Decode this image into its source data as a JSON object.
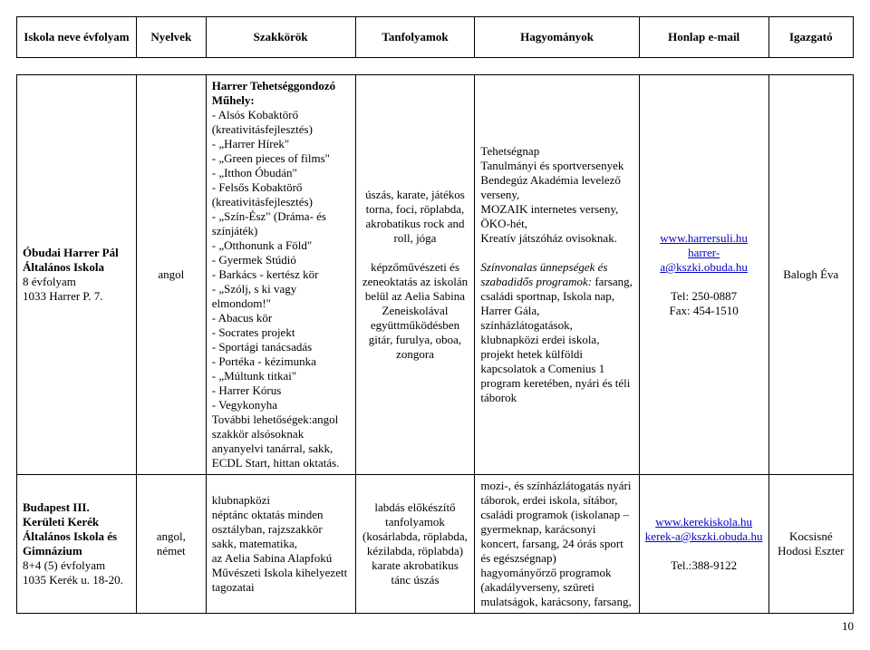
{
  "headers": {
    "school": "Iskola neve évfolyam",
    "languages": "Nyelvek",
    "clubs": "Szakkörök",
    "courses": "Tanfolyamok",
    "traditions": "Hagyományok",
    "contact": "Honlap e-mail",
    "head": "Igazgató"
  },
  "rows": [
    {
      "school_name": "Óbudai Harrer Pál Általános Iskola",
      "school_grades": "8 évfolyam",
      "school_addr": "1033 Harrer P. 7.",
      "languages": "angol",
      "clubs_title": "Harrer Tehetséggondozó Műhely:",
      "clubs_items": [
        "- Alsós Kobaktörő (kreativitásfejlesztés)",
        "- „Harrer Hírek\"",
        "- „Green pieces of films\"",
        "- „Itthon Óbudán\"",
        "- Felsős Kobaktörő (kreativitásfejlesztés)",
        "- „Szín-Ész\" (Dráma- és színjáték)",
        "- „Otthonunk a Föld\"",
        "- Gyermek Stúdió",
        "- Barkács - kertész kör",
        "- „Szólj, s ki vagy elmondom!\"",
        "- Abacus kör",
        "- Socrates projekt",
        "- Sportági tanácsadás",
        "- Portéka - kézimunka",
        "- „Múltunk titkai\"",
        "- Harrer Kórus",
        "- Vegykonyha"
      ],
      "clubs_footer": "További lehetőségek:angol szakkör alsósoknak anyanyelvi tanárral, sakk, ECDL Start, hittan oktatás.",
      "courses_block1": "úszás, karate, játékos torna, foci, röplabda, akrobatikus rock and roll, jóga",
      "courses_block2": "képzőművészeti és zeneoktatás az iskolán belül az Aelia Sabina Zeneiskolával együttműködésben gitár, furulya, oboa, zongora",
      "trad_block1": "Tehetségnap\nTanulmányi és sportversenyek\nBendegúz Akadémia levelező verseny,\nMOZAIK internetes verseny,\nÖKO-hét,\nKreatív játszóház ovisoknak.",
      "trad_block2_lead": "Színvonalas ünnepségek és szabadidős programok:",
      "trad_block2_rest": " farsang, családi sportnap, Iskola nap, Harrer Gála, színházlátogatások, klubnapközi erdei iskola, projekt hetek külföldi kapcsolatok a Comenius 1 program keretében, nyári és téli táborok",
      "url": "www.harrersuli.hu",
      "email": "harrer-a@kszki.obuda.hu",
      "tel": "Tel: 250-0887",
      "fax": "Fax: 454-1510",
      "head": "Balogh Éva"
    },
    {
      "school_name": "Budapest III. Kerületi Kerék Általános Iskola és Gimnázium",
      "school_grades": "8+4 (5) évfolyam",
      "school_addr": "1035 Kerék u. 18-20.",
      "languages": "angol, német",
      "clubs": "klubnapközi\nnéptánc oktatás minden osztályban, rajzszakkör sakk, matematika,\naz Aelia Sabina Alapfokú Művészeti Iskola kihelyezett tagozatai",
      "courses": "labdás előkészítő tanfolyamok (kosárlabda, röplabda, kézilabda, röplabda) karate akrobatikus tánc úszás",
      "traditions": "mozi-, és színházlátogatás nyári táborok, erdei iskola, sítábor, családi programok (iskolanap – gyermeknap, karácsonyi koncert, farsang, 24 órás sport és egészségnap) hagyományőrző programok (akadályverseny, szüreti mulatságok, karácsony, farsang,",
      "url": "www.kerekiskola.hu",
      "email": "kerek-a@kszki.obuda.hu",
      "tel": "Tel.:388-9122",
      "head": "Kocsisné Hodosi Eszter"
    }
  ],
  "page_number": "10"
}
